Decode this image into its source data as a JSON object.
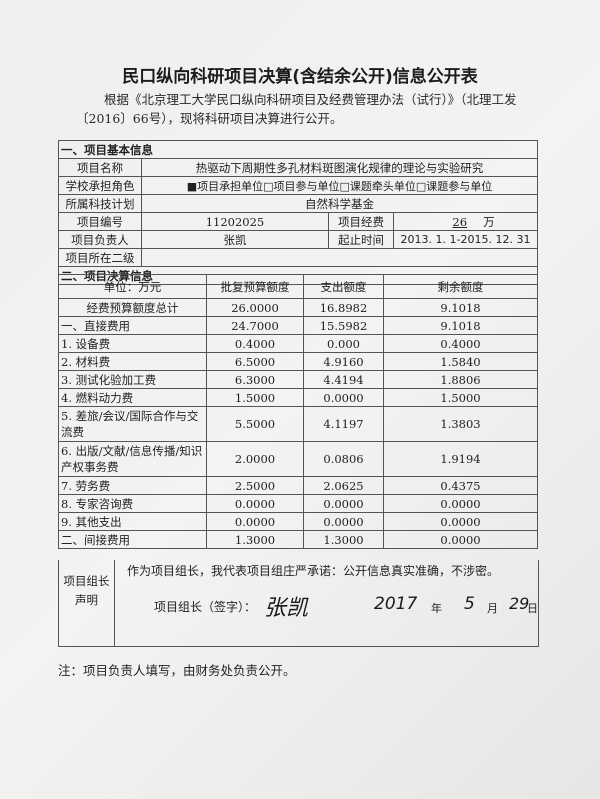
{
  "title": "民口纵向科研项目决算(含结余公开)信息公开表",
  "intro": "根据《北京理工大学民口纵向科研项目及经费管理办法（试行）》（北理工发〔2016〕66号），现将科研项目决算进行公开。",
  "basic": {
    "section": "一、项目基本信息",
    "name_label": "项目名称",
    "name": "热驱动下周期性多孔材料斑图演化规律的理论与实验研究",
    "role_label": "学校承担角色",
    "role": "■项目承担单位□项目参与单位□课题牵头单位□课题参与单位",
    "plan_label": "所属科技计划",
    "plan": "自然科学基金",
    "number_label": "项目编号",
    "number": "11202025",
    "funding_label": "项目经费",
    "funding": "26",
    "funding_unit": "万",
    "leader_label": "项目负责人",
    "leader": "张凯",
    "period_label": "起止时间",
    "period": "2013. 1. 1-2015. 12. 31",
    "dept_label": "项目所在二级",
    "dept": ""
  },
  "budget": {
    "section": "二、项目决算信息",
    "headers": [
      "单位：万元",
      "批复预算额度",
      "支出额度",
      "剩余额度"
    ],
    "rows": [
      [
        "经费预算额度总计",
        "26.0000",
        "16.8982",
        "9.1018"
      ],
      [
        "一、直接费用",
        "24.7000",
        "15.5982",
        "9.1018"
      ],
      [
        "1. 设备费",
        "0.4000",
        "0.000",
        "0.4000"
      ],
      [
        "2. 材料费",
        "6.5000",
        "4.9160",
        "1.5840"
      ],
      [
        "3. 测试化验加工费",
        "6.3000",
        "4.4194",
        "1.8806"
      ],
      [
        "4. 燃料动力费",
        "1.5000",
        "0.0000",
        "1.5000"
      ],
      [
        "5. 差旅/会议/国际合作与交流费",
        "5.5000",
        "4.1197",
        "1.3803"
      ],
      [
        "6. 出版/文献/信息传播/知识产权事务费",
        "2.0000",
        "0.0806",
        "1.9194"
      ],
      [
        "7. 劳务费",
        "2.5000",
        "2.0625",
        "0.4375"
      ],
      [
        "8. 专家咨询费",
        "0.0000",
        "0.0000",
        "0.0000"
      ],
      [
        "9. 其他支出",
        "0.0000",
        "0.0000",
        "0.0000"
      ],
      [
        "二、间接费用",
        "1.3000",
        "1.3000",
        "0.0000"
      ]
    ]
  },
  "declaration": {
    "label": "项目组长声明",
    "pledge": "作为项目组长，我代表项目组庄严承诺：公开信息真实准确，不涉密。",
    "signer_label": "项目组长（签字）：",
    "signature": "张凯",
    "year": "2017",
    "year_unit": "年",
    "month": "5",
    "month_unit": "月",
    "day": "29",
    "day_unit": "日"
  },
  "note": "注：项目负责人填写，由财务处负责公开。"
}
